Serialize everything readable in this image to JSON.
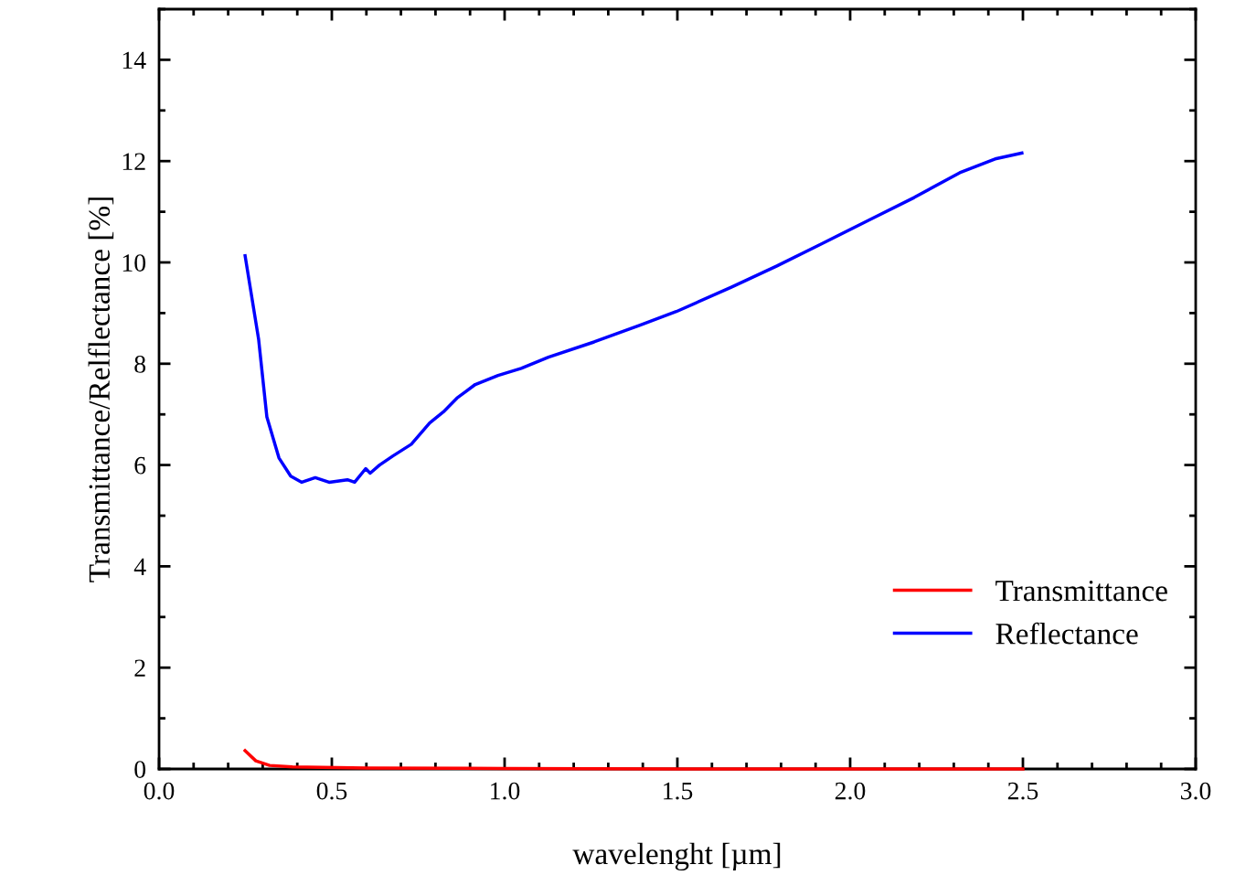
{
  "chart_data": {
    "type": "line",
    "xlabel": "wavelenght [µm]",
    "ylabel": "Transmittance/Relflectance [%]",
    "xlim": [
      0,
      3
    ],
    "ylim": [
      0,
      15
    ],
    "xticks": [
      {
        "value": 0,
        "label": "0.0"
      },
      {
        "value": 0.5,
        "label": "0.5"
      },
      {
        "value": 1,
        "label": "1.0"
      },
      {
        "value": 1.5,
        "label": "1.5"
      },
      {
        "value": 2,
        "label": "2.0"
      },
      {
        "value": 2.5,
        "label": "2.5"
      },
      {
        "value": 3,
        "label": "3.0"
      }
    ],
    "yticks": [
      0,
      2,
      4,
      6,
      8,
      10,
      12,
      14
    ],
    "legend": "bottom right",
    "grid": false,
    "line_style": "solid",
    "marker": "none",
    "series": [
      {
        "name": "Transmittance",
        "color": "#ff0000",
        "x": [
          0.249,
          0.28,
          0.32,
          0.386,
          0.6,
          1.0,
          1.5,
          2.0,
          2.5
        ],
        "values": [
          0.36,
          0.16,
          0.07,
          0.04,
          0.02,
          0.01,
          0.0,
          0.0,
          0.0
        ]
      },
      {
        "name": "Reflectance",
        "color": "#0000ff",
        "x": [
          0.249,
          0.288,
          0.312,
          0.347,
          0.381,
          0.413,
          0.452,
          0.492,
          0.545,
          0.566,
          0.598,
          0.611,
          0.638,
          0.677,
          0.73,
          0.783,
          0.823,
          0.862,
          0.915,
          0.981,
          1.048,
          1.127,
          1.259,
          1.392,
          1.497,
          1.656,
          1.788,
          1.921,
          2.053,
          2.185,
          2.317,
          2.423,
          2.497
        ],
        "values": [
          10.13,
          8.49,
          6.95,
          6.14,
          5.78,
          5.66,
          5.75,
          5.66,
          5.71,
          5.66,
          5.93,
          5.84,
          6.0,
          6.18,
          6.41,
          6.83,
          7.05,
          7.32,
          7.59,
          7.77,
          7.91,
          8.13,
          8.43,
          8.76,
          9.03,
          9.51,
          9.93,
          10.38,
          10.83,
          11.28,
          11.77,
          12.05,
          12.16
        ]
      }
    ]
  }
}
